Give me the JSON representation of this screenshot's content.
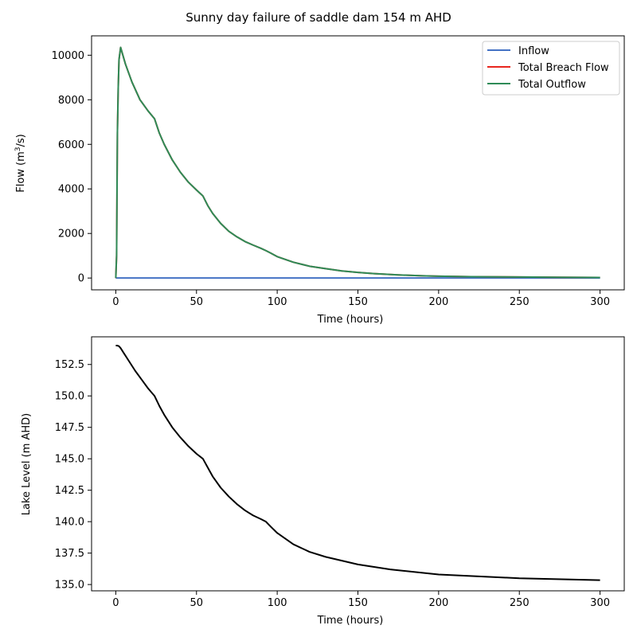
{
  "figure": {
    "title": "Sunny day failure of saddle dam 154 m AHD"
  },
  "chart_data": [
    {
      "type": "line",
      "xlabel": "Time (hours)",
      "ylabel_main": "Flow (m",
      "ylabel_sup": "3",
      "ylabel_tail": "/s)",
      "xlim": [
        -15,
        315
      ],
      "ylim": [
        -530,
        10870
      ],
      "xticks": [
        0,
        50,
        100,
        150,
        200,
        250,
        300
      ],
      "yticks": [
        0,
        2000,
        4000,
        6000,
        8000,
        10000
      ],
      "grid": false,
      "legend_position": "top-right",
      "series": [
        {
          "name": "Inflow",
          "color": "#4472c4",
          "x": [
            0,
            300
          ],
          "y": [
            0,
            0
          ]
        },
        {
          "name": "Total Breach Flow",
          "color": "#e8261e",
          "x": [
            0,
            0.5,
            1,
            1.5,
            2,
            3,
            6,
            10,
            15,
            20,
            24,
            27,
            30,
            35,
            40,
            45,
            50,
            54,
            57,
            60,
            65,
            70,
            75,
            80,
            85,
            90,
            93,
            96,
            100,
            110,
            120,
            130,
            140,
            150,
            160,
            175,
            190,
            200,
            220,
            250,
            275,
            300
          ],
          "y": [
            0,
            1000,
            6500,
            8500,
            9800,
            10350,
            9600,
            8800,
            8000,
            7500,
            7150,
            6500,
            6000,
            5300,
            4750,
            4300,
            3950,
            3680,
            3250,
            2900,
            2450,
            2100,
            1850,
            1640,
            1480,
            1330,
            1230,
            1120,
            960,
            710,
            530,
            420,
            320,
            250,
            200,
            140,
            100,
            80,
            60,
            45,
            35,
            25
          ]
        },
        {
          "name": "Total Outflow",
          "color": "#2e8b57",
          "x": [
            0,
            0.5,
            1,
            1.5,
            2,
            3,
            6,
            10,
            15,
            20,
            24,
            27,
            30,
            35,
            40,
            45,
            50,
            54,
            57,
            60,
            65,
            70,
            75,
            80,
            85,
            90,
            93,
            96,
            100,
            110,
            120,
            130,
            140,
            150,
            160,
            175,
            190,
            200,
            220,
            250,
            275,
            300
          ],
          "y": [
            0,
            1000,
            6500,
            8500,
            9800,
            10350,
            9600,
            8800,
            8000,
            7500,
            7150,
            6500,
            6000,
            5300,
            4750,
            4300,
            3950,
            3680,
            3250,
            2900,
            2450,
            2100,
            1850,
            1640,
            1480,
            1330,
            1230,
            1120,
            960,
            710,
            530,
            420,
            320,
            250,
            200,
            140,
            100,
            80,
            60,
            45,
            35,
            25
          ]
        }
      ]
    },
    {
      "type": "line",
      "xlabel": "Time (hours)",
      "ylabel": "Lake Level (m AHD)",
      "xlim": [
        -15,
        315
      ],
      "ylim": [
        134.5,
        154.7
      ],
      "xticks": [
        0,
        50,
        100,
        150,
        200,
        250,
        300
      ],
      "yticks": [
        135.0,
        137.5,
        140.0,
        142.5,
        145.0,
        147.5,
        150.0,
        152.5
      ],
      "ytick_labels": [
        "135.0",
        "137.5",
        "140.0",
        "142.5",
        "145.0",
        "147.5",
        "150.0",
        "152.5"
      ],
      "grid": false,
      "series": [
        {
          "name": "",
          "color": "#000000",
          "x": [
            0,
            1,
            2,
            3,
            5,
            8,
            12,
            16,
            20,
            24,
            27,
            30,
            35,
            40,
            45,
            50,
            54,
            57,
            60,
            65,
            70,
            75,
            80,
            85,
            90,
            93,
            96,
            100,
            110,
            120,
            130,
            140,
            150,
            170,
            200,
            250,
            300
          ],
          "y": [
            154.0,
            154.0,
            153.95,
            153.8,
            153.4,
            152.8,
            152.0,
            151.3,
            150.6,
            150.0,
            149.2,
            148.5,
            147.5,
            146.7,
            146.0,
            145.4,
            145.0,
            144.3,
            143.6,
            142.7,
            142.0,
            141.4,
            140.9,
            140.5,
            140.2,
            140.0,
            139.6,
            139.1,
            138.2,
            137.6,
            137.2,
            136.9,
            136.6,
            136.2,
            135.8,
            135.5,
            135.35
          ]
        }
      ]
    }
  ]
}
